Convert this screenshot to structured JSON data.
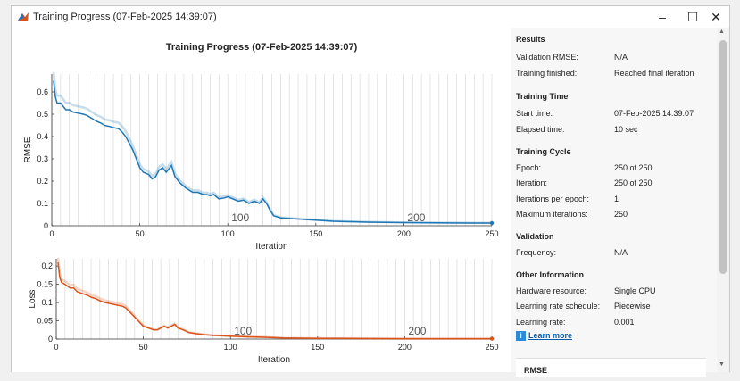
{
  "window": {
    "title": "Training Progress (07-Feb-2025 14:39:07)",
    "controls": {
      "minimize": "–",
      "maximize": "☐",
      "close": "✕"
    }
  },
  "plot": {
    "title": "Training Progress (07-Feb-2025 14:39:07)"
  },
  "chart_data": [
    {
      "type": "line",
      "title": "Training Progress (07-Feb-2025 14:39:07)",
      "xlabel": "Iteration",
      "ylabel": "RMSE",
      "xlim": [
        0,
        250
      ],
      "ylim": [
        0,
        0.68
      ],
      "xticks": [
        0,
        50,
        100,
        150,
        200,
        250
      ],
      "yticks": [
        0,
        0.1,
        0.2,
        0.3,
        0.4,
        0.5,
        0.6
      ],
      "ytick_labels": [
        "0",
        "0.1",
        "0.2",
        "0.3",
        "0.4",
        "0.5",
        "0.6"
      ],
      "epoch_markers": [
        {
          "x": 100,
          "label": "100"
        },
        {
          "x": 200,
          "label": "200"
        }
      ],
      "series": [
        {
          "name": "Training RMSE (smoothed)",
          "color": "#1f77b4",
          "x": [
            1,
            2,
            3,
            5,
            8,
            10,
            12,
            15,
            18,
            20,
            23,
            25,
            28,
            30,
            33,
            35,
            38,
            40,
            42,
            44,
            46,
            48,
            50,
            52,
            55,
            57,
            59,
            61,
            63,
            65,
            66,
            68,
            70,
            73,
            76,
            78,
            80,
            83,
            86,
            88,
            90,
            92,
            95,
            98,
            100,
            103,
            106,
            109,
            112,
            115,
            118,
            120,
            122,
            124,
            126,
            128,
            130,
            140,
            150,
            160,
            170,
            180,
            200,
            220,
            240,
            250
          ],
          "y": [
            0.65,
            0.58,
            0.55,
            0.55,
            0.52,
            0.52,
            0.51,
            0.505,
            0.5,
            0.495,
            0.48,
            0.47,
            0.46,
            0.45,
            0.445,
            0.44,
            0.435,
            0.42,
            0.4,
            0.37,
            0.34,
            0.3,
            0.26,
            0.24,
            0.23,
            0.21,
            0.22,
            0.25,
            0.26,
            0.24,
            0.25,
            0.27,
            0.22,
            0.19,
            0.17,
            0.16,
            0.15,
            0.15,
            0.14,
            0.14,
            0.135,
            0.14,
            0.12,
            0.125,
            0.13,
            0.12,
            0.11,
            0.115,
            0.1,
            0.11,
            0.1,
            0.12,
            0.1,
            0.07,
            0.045,
            0.04,
            0.035,
            0.03,
            0.025,
            0.02,
            0.018,
            0.016,
            0.014,
            0.013,
            0.012,
            0.012
          ]
        }
      ]
    },
    {
      "type": "line",
      "xlabel": "Iteration",
      "ylabel": "Loss",
      "xlim": [
        0,
        250
      ],
      "ylim": [
        0,
        0.22
      ],
      "xticks": [
        0,
        50,
        100,
        150,
        200,
        250
      ],
      "yticks": [
        0,
        0.05,
        0.1,
        0.15,
        0.2
      ],
      "ytick_labels": [
        "0",
        "0.05",
        "0.1",
        "0.15",
        "0.2"
      ],
      "epoch_markers": [
        {
          "x": 100,
          "label": "100"
        },
        {
          "x": 200,
          "label": "200"
        }
      ],
      "series": [
        {
          "name": "Training Loss (smoothed)",
          "color": "#d9541a",
          "x": [
            1,
            2,
            3,
            5,
            8,
            10,
            12,
            15,
            18,
            20,
            23,
            25,
            28,
            30,
            33,
            35,
            38,
            40,
            42,
            44,
            46,
            48,
            50,
            53,
            56,
            58,
            60,
            62,
            64,
            66,
            68,
            70,
            73,
            76,
            80,
            85,
            90,
            95,
            100,
            110,
            120,
            130,
            150,
            200,
            250
          ],
          "y": [
            0.21,
            0.17,
            0.155,
            0.15,
            0.14,
            0.14,
            0.13,
            0.125,
            0.12,
            0.115,
            0.11,
            0.105,
            0.1,
            0.098,
            0.095,
            0.093,
            0.09,
            0.085,
            0.075,
            0.065,
            0.055,
            0.045,
            0.035,
            0.03,
            0.025,
            0.025,
            0.03,
            0.035,
            0.03,
            0.035,
            0.04,
            0.03,
            0.025,
            0.018,
            0.015,
            0.012,
            0.01,
            0.009,
            0.008,
            0.006,
            0.005,
            0.003,
            0.002,
            0.001,
            0.001
          ]
        }
      ]
    }
  ],
  "sections": [
    {
      "heading": "Results",
      "rows": [
        {
          "label": "Validation RMSE:",
          "value": "N/A"
        },
        {
          "label": "Training finished:",
          "value": "Reached final iteration"
        }
      ]
    },
    {
      "heading": "Training Time",
      "rows": [
        {
          "label": "Start time:",
          "value": "07-Feb-2025 14:39:07"
        },
        {
          "label": "Elapsed time:",
          "value": "10 sec"
        }
      ]
    },
    {
      "heading": "Training Cycle",
      "rows": [
        {
          "label": "Epoch:",
          "value": "250 of 250"
        },
        {
          "label": "Iteration:",
          "value": "250 of 250"
        },
        {
          "label": "Iterations per epoch:",
          "value": "1"
        },
        {
          "label": "Maximum iterations:",
          "value": "250"
        }
      ]
    },
    {
      "heading": "Validation",
      "rows": [
        {
          "label": "Frequency:",
          "value": "N/A"
        }
      ]
    },
    {
      "heading": "Other Information",
      "rows": [
        {
          "label": "Hardware resource:",
          "value": "Single CPU"
        },
        {
          "label": "Learning rate schedule:",
          "value": "Piecewise"
        },
        {
          "label": "Learning rate:",
          "value": "0.001"
        }
      ]
    }
  ],
  "learn_more": "Learn more",
  "info_glyph": "i",
  "rmse_box_label": "RMSE"
}
